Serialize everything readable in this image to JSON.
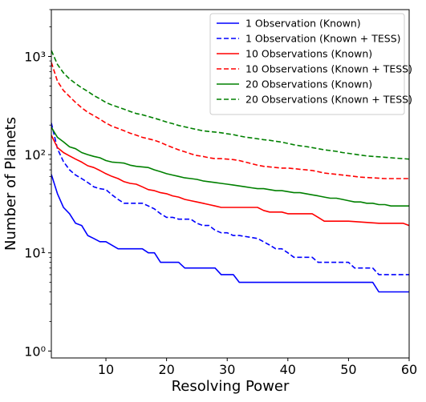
{
  "chart_data": {
    "type": "line",
    "title": "",
    "xlabel": "Resolving Power",
    "ylabel": "Number of Planets",
    "xlim": [
      1,
      60
    ],
    "ylim": [
      0.85,
      3000
    ],
    "yscale": "log",
    "grid": false,
    "legend_position": "top-right",
    "x_ticks": [
      10,
      20,
      30,
      40,
      50,
      60
    ],
    "x_tick_labels": [
      "10",
      "20",
      "30",
      "40",
      "50",
      "60"
    ],
    "y_ticks": [
      1,
      10,
      100,
      1000
    ],
    "y_tick_labels": [
      "10⁰",
      "10¹",
      "10²",
      "10³"
    ],
    "series": [
      {
        "name": "1 Observation (Known)",
        "color": "#0000ff",
        "dash": "solid",
        "x": [
          1,
          2,
          3,
          4,
          5,
          6,
          7,
          8,
          9,
          10,
          12,
          16,
          17,
          18,
          19,
          22,
          23,
          27,
          28,
          29,
          30,
          31,
          32,
          54,
          55,
          60
        ],
        "y": [
          63,
          40,
          29,
          25,
          20,
          19,
          15,
          14,
          13,
          13,
          11,
          11,
          10,
          10,
          8,
          8,
          7,
          7,
          7,
          6,
          6,
          6,
          5,
          5,
          4,
          4
        ]
      },
      {
        "name": "1 Observation (Known + TESS)",
        "color": "#0000ff",
        "dash": "dashed",
        "x": [
          1,
          2,
          3,
          4,
          5,
          6,
          7,
          8,
          9,
          10,
          11,
          12,
          13,
          16,
          17,
          18,
          19,
          20,
          21,
          22,
          24,
          25,
          26,
          27,
          28,
          29,
          30,
          31,
          32,
          35,
          37,
          38,
          39,
          40,
          41,
          42,
          43,
          44,
          45,
          46,
          47,
          48,
          49,
          50,
          51,
          52,
          53,
          54,
          55,
          56,
          57,
          58,
          59,
          60
        ],
        "y": [
          210,
          115,
          85,
          70,
          62,
          57,
          52,
          47,
          45,
          44,
          39,
          35,
          32,
          32,
          30,
          28,
          25,
          23,
          23,
          22,
          22,
          20,
          19,
          19,
          17,
          16,
          16,
          15,
          15,
          14,
          12,
          11,
          11,
          10,
          9,
          9,
          9,
          9,
          8,
          8,
          8,
          8,
          8,
          8,
          7,
          7,
          7,
          7,
          6,
          6,
          6,
          6,
          6,
          6
        ]
      },
      {
        "name": "10 Observations (Known)",
        "color": "#ff0000",
        "dash": "solid",
        "x": [
          1,
          2,
          3,
          4,
          5,
          6,
          7,
          8,
          9,
          10,
          11,
          12,
          13,
          14,
          15,
          16,
          17,
          18,
          19,
          20,
          21,
          22,
          23,
          24,
          25,
          26,
          27,
          28,
          29,
          30,
          35,
          36,
          37,
          38,
          39,
          40,
          41,
          42,
          43,
          44,
          45,
          46,
          47,
          48,
          49,
          50,
          55,
          59,
          60
        ],
        "y": [
          158,
          118,
          105,
          97,
          90,
          84,
          77,
          74,
          69,
          64,
          60,
          57,
          53,
          51,
          50,
          47,
          44,
          43,
          41,
          40,
          38,
          37,
          35,
          34,
          33,
          32,
          31,
          30,
          29,
          29,
          29,
          27,
          26,
          26,
          26,
          25,
          25,
          25,
          25,
          25,
          23,
          21,
          21,
          21,
          21,
          21,
          20,
          20,
          19
        ]
      },
      {
        "name": "10 Observations (Known + TESS)",
        "color": "#ff0000",
        "dash": "dashed",
        "x": [
          1,
          2,
          3,
          4,
          5,
          6,
          7,
          8,
          9,
          10,
          11,
          12,
          13,
          14,
          15,
          16,
          17,
          18,
          19,
          20,
          21,
          22,
          23,
          24,
          25,
          26,
          27,
          28,
          29,
          30,
          31,
          32,
          33,
          34,
          35,
          36,
          37,
          38,
          39,
          40,
          41,
          42,
          43,
          44,
          45,
          46,
          47,
          48,
          49,
          50,
          52,
          54,
          56,
          58,
          60
        ],
        "y": [
          870,
          560,
          450,
          390,
          340,
          300,
          270,
          250,
          230,
          210,
          195,
          185,
          175,
          165,
          158,
          150,
          145,
          140,
          133,
          125,
          118,
          112,
          107,
          102,
          98,
          96,
          93,
          91,
          91,
          90,
          89,
          87,
          84,
          81,
          78,
          76,
          75,
          74,
          73,
          73,
          72,
          71,
          70,
          69,
          67,
          65,
          64,
          63,
          62,
          61,
          59,
          58,
          57,
          57,
          57
        ]
      },
      {
        "name": "20 Observations (Known)",
        "color": "#008000",
        "dash": "solid",
        "x": [
          1,
          2,
          3,
          4,
          5,
          6,
          7,
          8,
          9,
          10,
          11,
          12,
          13,
          14,
          15,
          16,
          17,
          18,
          19,
          20,
          21,
          22,
          23,
          24,
          25,
          26,
          27,
          28,
          29,
          30,
          31,
          32,
          33,
          34,
          35,
          36,
          37,
          38,
          39,
          40,
          41,
          42,
          43,
          44,
          45,
          46,
          47,
          48,
          49,
          50,
          51,
          52,
          53,
          54,
          55,
          56,
          57,
          58,
          59,
          60
        ],
        "y": [
          190,
          150,
          135,
          120,
          115,
          105,
          100,
          96,
          93,
          87,
          84,
          83,
          82,
          78,
          76,
          75,
          74,
          70,
          67,
          64,
          62,
          60,
          58,
          57,
          56,
          54,
          53,
          52,
          51,
          50,
          49,
          48,
          47,
          46,
          45,
          45,
          44,
          43,
          43,
          42,
          41,
          41,
          40,
          39,
          38,
          37,
          36,
          36,
          35,
          34,
          33,
          33,
          32,
          32,
          31,
          31,
          30,
          30,
          30,
          30
        ]
      },
      {
        "name": "20 Observations (Known + TESS)",
        "color": "#008000",
        "dash": "dashed",
        "x": [
          1,
          2,
          3,
          4,
          5,
          6,
          7,
          8,
          9,
          10,
          11,
          12,
          13,
          14,
          15,
          16,
          17,
          18,
          19,
          20,
          21,
          22,
          23,
          24,
          25,
          26,
          27,
          28,
          29,
          30,
          31,
          32,
          33,
          34,
          35,
          36,
          37,
          38,
          39,
          40,
          41,
          42,
          43,
          44,
          45,
          46,
          47,
          48,
          49,
          50,
          51,
          52,
          53,
          54,
          55,
          56,
          57,
          58,
          59,
          60
        ],
        "y": [
          1150,
          830,
          680,
          590,
          530,
          480,
          440,
          400,
          370,
          340,
          320,
          305,
          290,
          275,
          262,
          255,
          245,
          235,
          225,
          215,
          207,
          198,
          192,
          186,
          180,
          175,
          172,
          170,
          167,
          163,
          160,
          155,
          151,
          148,
          145,
          142,
          140,
          137,
          134,
          130,
          126,
          123,
          121,
          118,
          115,
          112,
          110,
          108,
          105,
          103,
          101,
          99,
          97,
          96,
          95,
          94,
          93,
          92,
          91,
          90
        ]
      }
    ]
  }
}
